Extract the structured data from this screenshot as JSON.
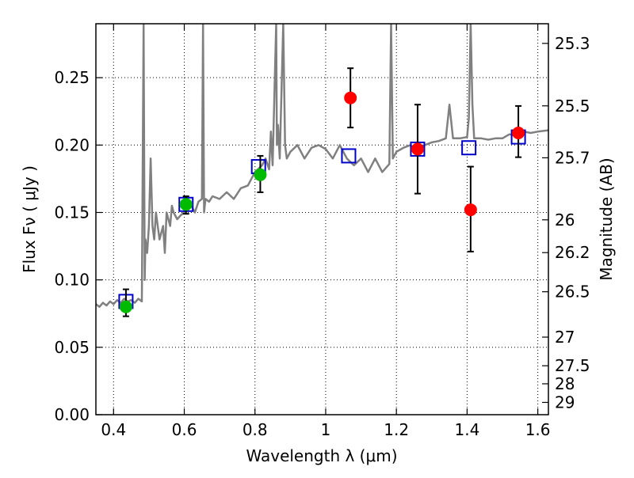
{
  "chart_data": {
    "type": "scatter",
    "xlabel": "Wavelength  λ (μm)",
    "ylabel_left": "Flux  Fν  ( μJy )",
    "ylabel_right": "Magnitude (AB)",
    "xlim": [
      0.35,
      1.63
    ],
    "ylim": [
      0.0,
      0.29
    ],
    "grid": true,
    "x_ticks": [
      0.4,
      0.6,
      0.8,
      1.0,
      1.2,
      1.4,
      1.6
    ],
    "x_tick_labels": [
      "0.4",
      "0.6",
      "0.8",
      "1",
      "1.2",
      "1.4",
      "1.6"
    ],
    "y_ticks": [
      0.0,
      0.05,
      0.1,
      0.15,
      0.2,
      0.25
    ],
    "y_tick_labels": [
      "0.00",
      "0.05",
      "0.10",
      "0.15",
      "0.20",
      "0.25"
    ],
    "right_ticks": [
      {
        "label": "25.3",
        "mag": 25.3
      },
      {
        "label": "25.5",
        "mag": 25.5
      },
      {
        "label": "25.7",
        "mag": 25.7
      },
      {
        "label": "26",
        "mag": 26.0
      },
      {
        "label": "26.2",
        "mag": 26.2
      },
      {
        "label": "26.5",
        "mag": 26.5
      },
      {
        "label": "27",
        "mag": 27.0
      },
      {
        "label": "27.5",
        "mag": 27.5
      },
      {
        "label": "28",
        "mag": 28.0
      },
      {
        "label": "29",
        "mag": 29.0
      }
    ],
    "series": [
      {
        "style": "line",
        "color": "#808080",
        "x": [
          0.35,
          0.36,
          0.37,
          0.38,
          0.39,
          0.4,
          0.41,
          0.42,
          0.43,
          0.44,
          0.45,
          0.46,
          0.47,
          0.48,
          0.485,
          0.488,
          0.49,
          0.495,
          0.5,
          0.505,
          0.51,
          0.515,
          0.52,
          0.53,
          0.54,
          0.545,
          0.55,
          0.56,
          0.565,
          0.57,
          0.58,
          0.59,
          0.6,
          0.61,
          0.62,
          0.63,
          0.64,
          0.65,
          0.653,
          0.656,
          0.66,
          0.67,
          0.68,
          0.7,
          0.72,
          0.74,
          0.76,
          0.78,
          0.8,
          0.82,
          0.83,
          0.84,
          0.845,
          0.85,
          0.86,
          0.862,
          0.865,
          0.87,
          0.88,
          0.885,
          0.89,
          0.9,
          0.92,
          0.94,
          0.96,
          0.98,
          1.0,
          1.02,
          1.04,
          1.06,
          1.08,
          1.1,
          1.12,
          1.14,
          1.16,
          1.18,
          1.185,
          1.19,
          1.2,
          1.22,
          1.24,
          1.26,
          1.28,
          1.3,
          1.32,
          1.34,
          1.35,
          1.36,
          1.38,
          1.4,
          1.405,
          1.41,
          1.415,
          1.42,
          1.44,
          1.46,
          1.48,
          1.5,
          1.52,
          1.54,
          1.56,
          1.58,
          1.6,
          1.63
        ],
        "y": [
          0.082,
          0.08,
          0.083,
          0.081,
          0.084,
          0.082,
          0.085,
          0.083,
          0.086,
          0.084,
          0.085,
          0.083,
          0.086,
          0.084,
          0.29,
          0.1,
          0.13,
          0.12,
          0.14,
          0.19,
          0.14,
          0.13,
          0.15,
          0.13,
          0.14,
          0.12,
          0.15,
          0.14,
          0.155,
          0.15,
          0.145,
          0.148,
          0.15,
          0.152,
          0.155,
          0.15,
          0.158,
          0.16,
          0.29,
          0.15,
          0.16,
          0.158,
          0.162,
          0.16,
          0.165,
          0.16,
          0.168,
          0.17,
          0.18,
          0.185,
          0.19,
          0.182,
          0.21,
          0.185,
          0.29,
          0.2,
          0.215,
          0.19,
          0.29,
          0.2,
          0.19,
          0.195,
          0.2,
          0.19,
          0.198,
          0.2,
          0.197,
          0.19,
          0.2,
          0.19,
          0.185,
          0.19,
          0.18,
          0.19,
          0.18,
          0.186,
          0.29,
          0.19,
          0.195,
          0.198,
          0.2,
          0.196,
          0.2,
          0.202,
          0.203,
          0.205,
          0.23,
          0.205,
          0.205,
          0.206,
          0.22,
          0.29,
          0.23,
          0.205,
          0.205,
          0.204,
          0.205,
          0.205,
          0.208,
          0.207,
          0.21,
          0.209,
          0.21,
          0.211
        ]
      },
      {
        "style": "open-square",
        "color": "#0000cc",
        "x": [
          0.435,
          0.605,
          0.81,
          1.065,
          1.26,
          1.405,
          1.545
        ],
        "y": [
          0.084,
          0.156,
          0.184,
          0.192,
          0.197,
          0.198,
          0.206
        ]
      },
      {
        "style": "filled-circle",
        "color": "#00bb00",
        "x": [
          0.435,
          0.605,
          0.815
        ],
        "y": [
          0.08,
          0.156,
          0.178
        ],
        "yerr_low": [
          0.073,
          0.149,
          0.165
        ],
        "yerr_high": [
          0.093,
          0.162,
          0.192
        ]
      },
      {
        "style": "filled-circle",
        "color": "#ff0000",
        "x": [
          1.07,
          1.26,
          1.41,
          1.545
        ],
        "y": [
          0.235,
          0.197,
          0.152,
          0.209
        ],
        "yerr_low": [
          0.213,
          0.164,
          0.121,
          0.191
        ],
        "yerr_high": [
          0.257,
          0.23,
          0.184,
          0.229
        ]
      }
    ]
  }
}
